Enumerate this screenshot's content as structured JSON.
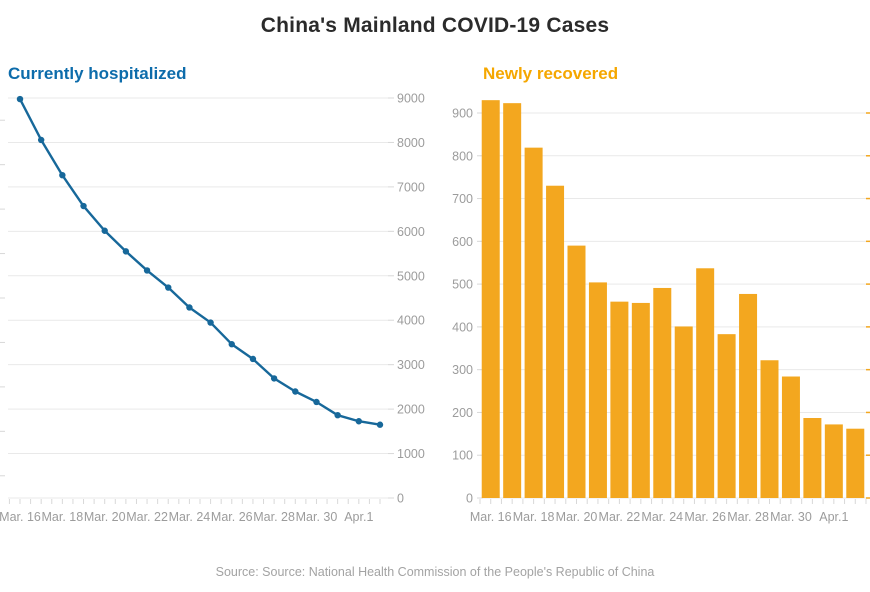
{
  "title": "China's Mainland COVID-19 Cases",
  "source": "Source: Source: National Health Commission of the People's Republic of China",
  "colors": {
    "title_text": "#2b2b2b",
    "blue_accent": "#0d6cab",
    "line_blue": "#17689a",
    "orange_accent": "#f5a700",
    "bar_orange": "#f3a71f",
    "grid": "#e9e9e9",
    "tick": "#d8d8d8",
    "axis_text": "#9c9c9c",
    "source_text": "#a3a3a3"
  },
  "chart_data": [
    {
      "type": "line",
      "title": "Currently hospitalized",
      "x": [
        "Mar. 16",
        "Mar. 17",
        "Mar. 18",
        "Mar. 19",
        "Mar. 20",
        "Mar. 21",
        "Mar. 22",
        "Mar. 23",
        "Mar. 24",
        "Mar. 25",
        "Mar. 26",
        "Mar. 27",
        "Mar. 28",
        "Mar. 29",
        "Mar. 30",
        "Mar. 31",
        "Apr.1",
        "Apr.2"
      ],
      "values": [
        8976,
        8056,
        7263,
        6569,
        6013,
        5549,
        5120,
        4735,
        4287,
        3947,
        3460,
        3128,
        2691,
        2396,
        2161,
        1863,
        1727,
        1649
      ],
      "x_tick_labels": [
        "Mar. 16",
        "Mar. 18",
        "Mar. 20",
        "Mar. 22",
        "Mar. 24",
        "Mar. 26",
        "Mar. 28",
        "Mar. 30",
        "Apr.1"
      ],
      "x_tick_indices": [
        0,
        2,
        4,
        6,
        8,
        10,
        12,
        14,
        16
      ],
      "ylim": [
        0,
        9000
      ],
      "y_tick_step": 1000,
      "y_labels_side": "right",
      "grid": true,
      "legend": "none"
    },
    {
      "type": "bar",
      "title": "Newly recovered",
      "x": [
        "Mar. 16",
        "Mar. 17",
        "Mar. 18",
        "Mar. 19",
        "Mar. 20",
        "Mar. 21",
        "Mar. 22",
        "Mar. 23",
        "Mar. 24",
        "Mar. 25",
        "Mar. 26",
        "Mar. 27",
        "Mar. 28",
        "Mar. 29",
        "Mar. 30",
        "Mar. 31",
        "Apr.1",
        "Apr.2"
      ],
      "values": [
        930,
        923,
        819,
        730,
        590,
        504,
        459,
        456,
        491,
        401,
        537,
        383,
        477,
        322,
        284,
        187,
        172,
        162
      ],
      "x_tick_labels": [
        "Mar. 16",
        "Mar. 18",
        "Mar. 20",
        "Mar. 22",
        "Mar. 24",
        "Mar. 26",
        "Mar. 28",
        "Mar. 30",
        "Apr.1"
      ],
      "x_tick_indices": [
        0,
        2,
        4,
        6,
        8,
        10,
        12,
        14,
        16
      ],
      "ylim": [
        0,
        900
      ],
      "y_tick_step": 100,
      "y_labels_side": "left",
      "grid": true,
      "legend": "none"
    }
  ]
}
